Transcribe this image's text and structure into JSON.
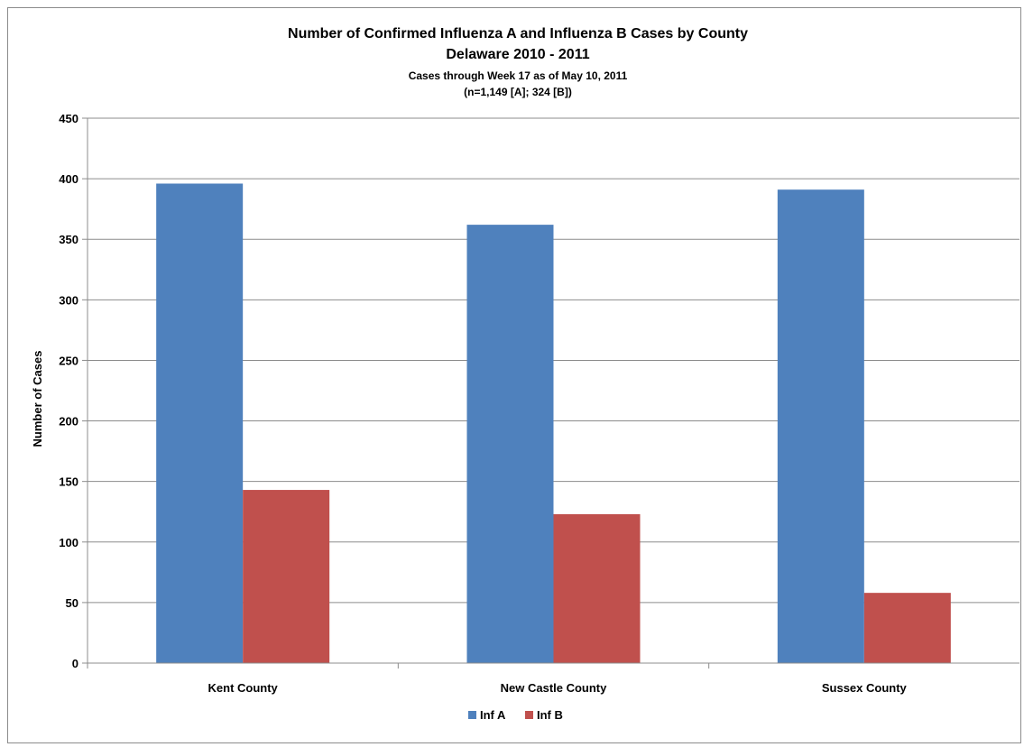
{
  "chart_data": {
    "type": "bar",
    "title": "Number of Confirmed Influenza A and Influenza B Cases by County",
    "title_line2": "Delaware 2010 - 2011",
    "subtitle": "Cases through Week 17 as of May 10, 2011",
    "subtitle_line2": "(n=1,149 [A]; 324 [B])",
    "xlabel": "",
    "ylabel": "Number of Cases",
    "ylim": [
      0,
      450
    ],
    "yticks": [
      0,
      50,
      100,
      150,
      200,
      250,
      300,
      350,
      400,
      450
    ],
    "categories": [
      "Kent County",
      "New Castle County",
      "Sussex County"
    ],
    "series": [
      {
        "name": "Inf A",
        "color": "#4F81BD",
        "values": [
          396,
          362,
          391
        ]
      },
      {
        "name": "Inf B",
        "color": "#C0504D",
        "values": [
          143,
          123,
          58
        ]
      }
    ],
    "grid": true,
    "legend_position": "bottom"
  }
}
